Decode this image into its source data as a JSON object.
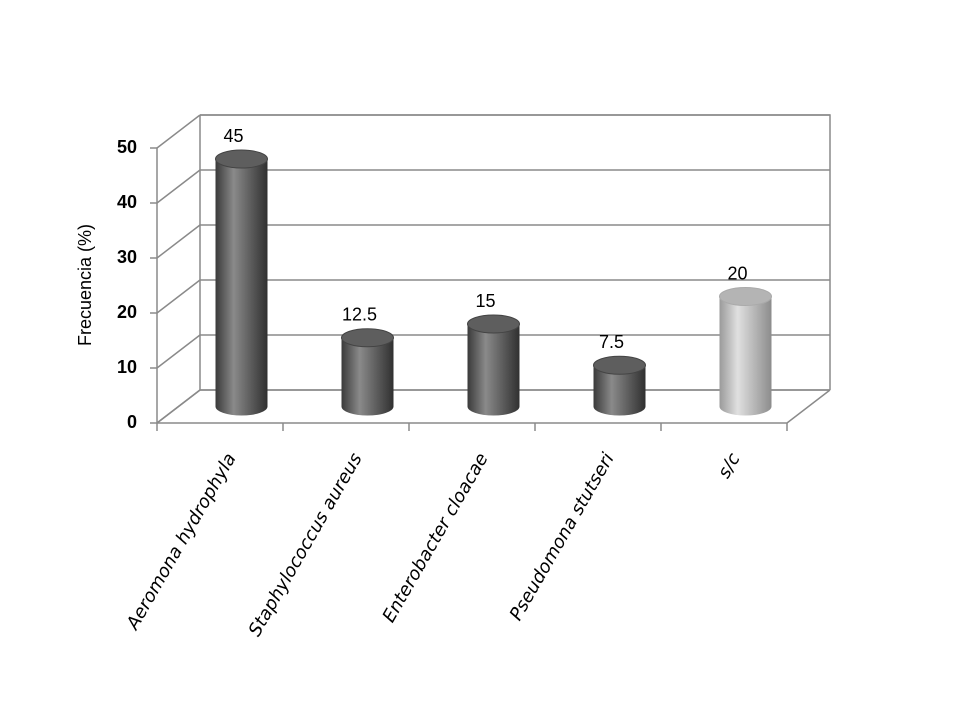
{
  "chart_data": {
    "type": "bar3d",
    "y_label": "Frecuencia (%)",
    "categories": [
      "Aeromona hydrophyla",
      "Staphylococcus aureus",
      "Enterobacter cloacae",
      "Pseudomona stutseri",
      "s/c"
    ],
    "values": [
      45,
      12.5,
      15,
      7.5,
      20
    ],
    "colors": [
      "#5e5e5e",
      "#5e5e5e",
      "#5e5e5e",
      "#5e5e5e",
      "#b4b4b4"
    ],
    "ylim": [
      0,
      50
    ],
    "yticks": [
      0,
      10,
      20,
      30,
      40,
      50
    ],
    "grid": true
  }
}
